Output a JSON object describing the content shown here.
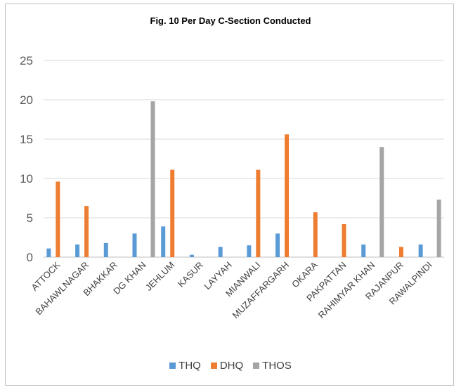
{
  "chart_data": {
    "type": "bar",
    "title": "Fig. 10  Per Day C-Section Conducted",
    "xlabel": "",
    "ylabel": "",
    "ylim": [
      0,
      25
    ],
    "yticks": [
      0,
      5,
      10,
      15,
      20,
      25
    ],
    "grid": true,
    "legend_position": "bottom",
    "categories": [
      "ATTOCK",
      "BAHAWLNAGAR",
      "BHAKKAR",
      "DG KHAN",
      "JEHLUM",
      "KASUR",
      "LAYYAH",
      "MIANWALI",
      "MUZAFFARGARH",
      "OKARA",
      "PAKPATTAN",
      "RAHIMYAR KHAN",
      "RAJANPUR",
      "RAWALPINDI"
    ],
    "series": [
      {
        "name": "THQ",
        "color": "#5b9bd5",
        "values": [
          1.1,
          1.6,
          1.8,
          3.0,
          3.9,
          0.3,
          1.3,
          1.5,
          3.0,
          0,
          0,
          1.6,
          0,
          1.6
        ]
      },
      {
        "name": "DHQ",
        "color": "#ed7d31",
        "values": [
          9.6,
          6.5,
          0,
          0,
          11.1,
          0,
          0,
          11.1,
          15.6,
          5.7,
          4.2,
          0,
          1.3,
          0
        ]
      },
      {
        "name": "THOS",
        "color": "#a5a5a5",
        "values": [
          0,
          0,
          0,
          19.8,
          0,
          0,
          0,
          0,
          0,
          0,
          0,
          14.0,
          0,
          7.3
        ]
      }
    ]
  }
}
